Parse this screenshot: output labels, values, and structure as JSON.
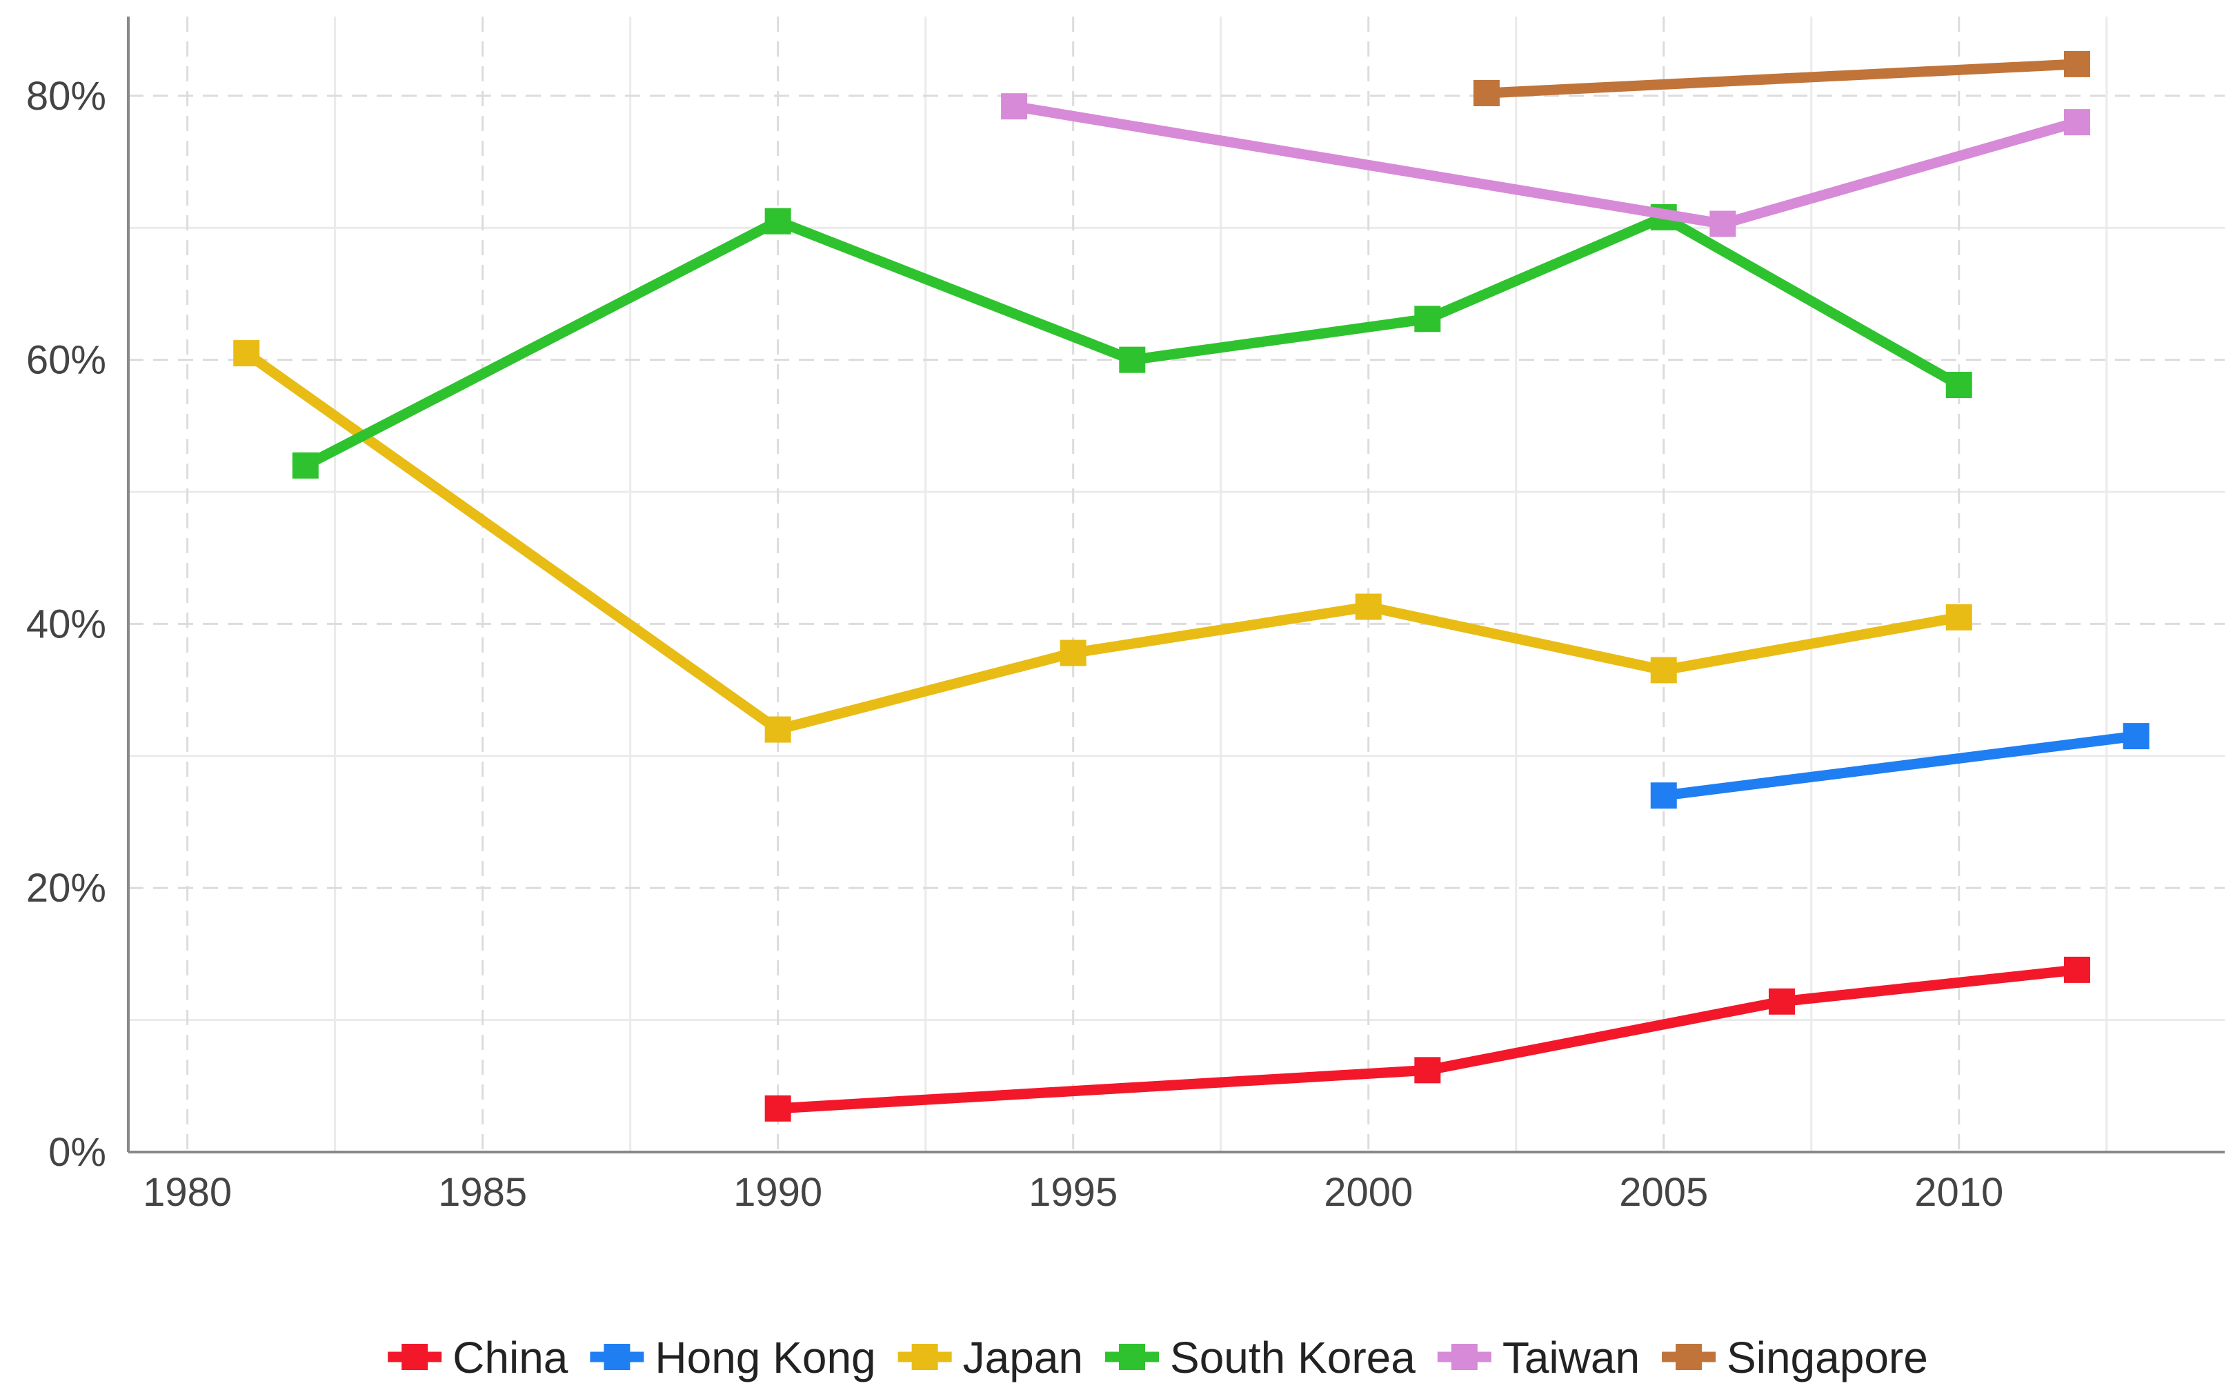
{
  "chart_data": {
    "type": "line",
    "title": "",
    "xlabel": "",
    "ylabel": "",
    "xlim": [
      1979,
      2014.5
    ],
    "ylim": [
      0,
      86
    ],
    "x_ticks": [
      1980,
      1985,
      1990,
      1995,
      2000,
      2005,
      2010
    ],
    "x_minor_ticks": [
      1982.5,
      1987.5,
      1992.5,
      1997.5,
      2002.5,
      2007.5,
      2012.5
    ],
    "y_ticks": [
      0,
      20,
      40,
      60,
      80
    ],
    "y_tick_labels": [
      "0%",
      "20%",
      "40%",
      "60%",
      "80%"
    ],
    "y_minor_ticks": [
      10,
      30,
      50,
      70
    ],
    "grid": true,
    "legend_position": "bottom",
    "series": [
      {
        "name": "China",
        "color": "#f2182a",
        "points": [
          [
            1990,
            3.3
          ],
          [
            2001,
            6.2
          ],
          [
            2007,
            11.4
          ],
          [
            2012,
            13.8
          ]
        ]
      },
      {
        "name": "Hong Kong",
        "color": "#1f7ef2",
        "points": [
          [
            2005,
            27.0
          ],
          [
            2013,
            31.5
          ]
        ]
      },
      {
        "name": "Japan",
        "color": "#e8bc14",
        "points": [
          [
            1981,
            60.5
          ],
          [
            1990,
            32.0
          ],
          [
            1995,
            37.8
          ],
          [
            2000,
            41.3
          ],
          [
            2005,
            36.5
          ],
          [
            2010,
            40.5
          ]
        ]
      },
      {
        "name": "South Korea",
        "color": "#2ec32e",
        "points": [
          [
            1982,
            52.0
          ],
          [
            1990,
            70.5
          ],
          [
            1996,
            60.0
          ],
          [
            2001,
            63.1
          ],
          [
            2005,
            70.8
          ],
          [
            2010,
            58.1
          ]
        ]
      },
      {
        "name": "Taiwan",
        "color": "#d78ad7",
        "points": [
          [
            1994,
            79.2
          ],
          [
            2006,
            70.3
          ],
          [
            2012,
            78.0
          ]
        ]
      },
      {
        "name": "Singapore",
        "color": "#c0743a",
        "points": [
          [
            2002,
            80.2
          ],
          [
            2012,
            82.4
          ]
        ]
      }
    ]
  }
}
